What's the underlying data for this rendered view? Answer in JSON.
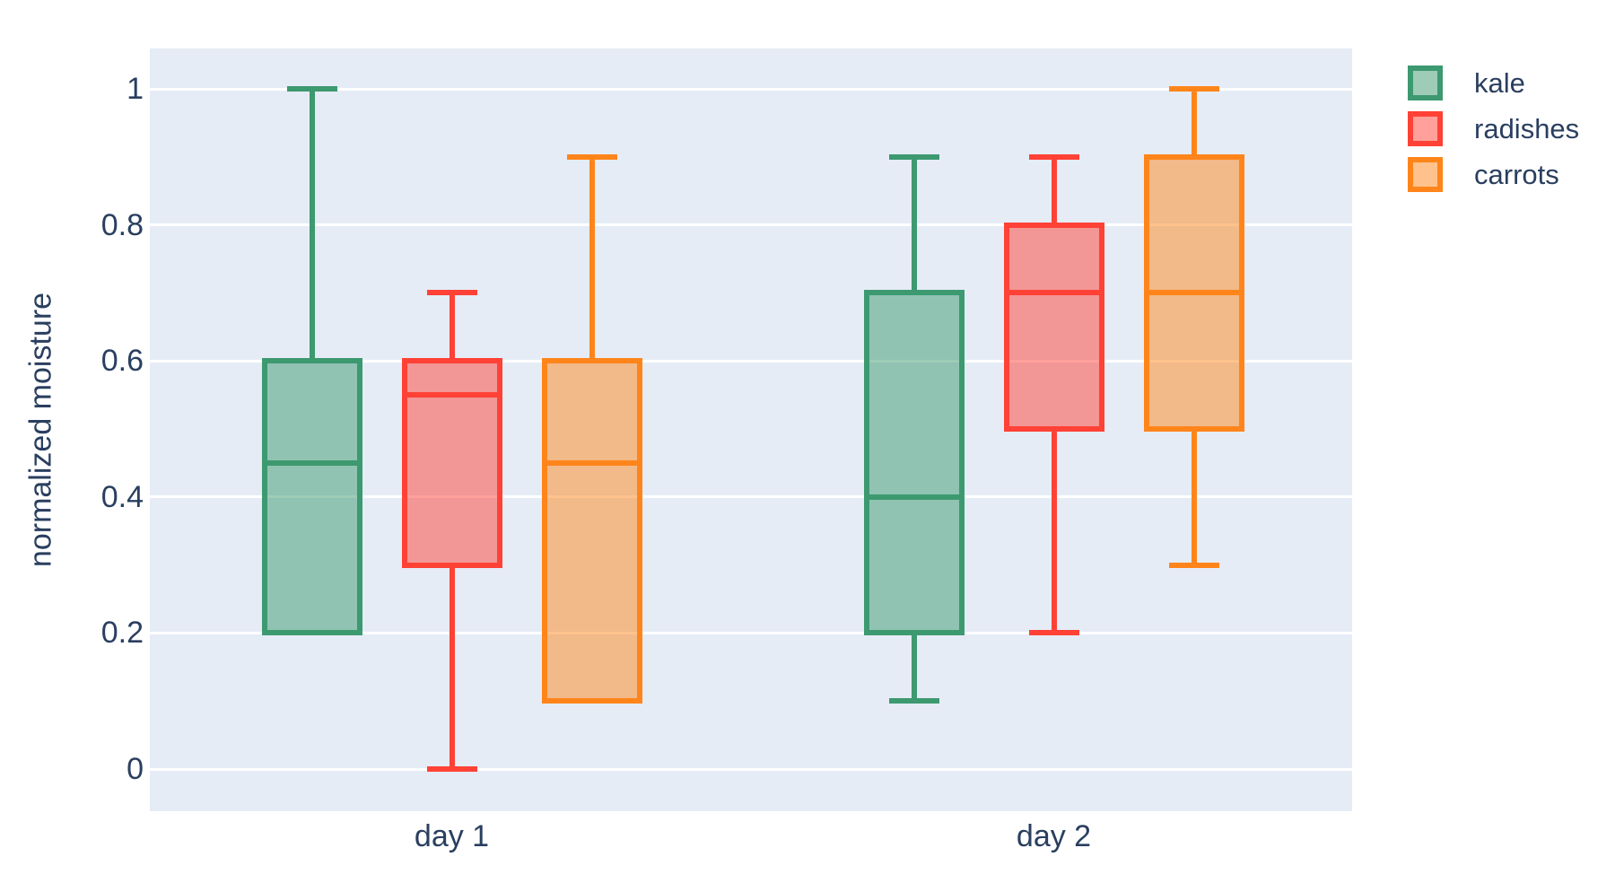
{
  "chart_data": {
    "type": "box",
    "boxmode": "group",
    "title": "",
    "xlabel": "",
    "ylabel": "normalized moisture",
    "categories": [
      "day 1",
      "day 2"
    ],
    "y_ticks": [
      {
        "label": "0",
        "value": 0
      },
      {
        "label": "0.2",
        "value": 0.2
      },
      {
        "label": "0.4",
        "value": 0.4
      },
      {
        "label": "0.6",
        "value": 0.6
      },
      {
        "label": "0.8",
        "value": 0.8
      },
      {
        "label": "1",
        "value": 1
      }
    ],
    "ylim": [
      -0.063,
      1.07
    ],
    "grid": true,
    "legend_position": "outside-top-right",
    "series": [
      {
        "name": "kale",
        "color": "#3D9970",
        "fill": "rgba(61,153,112,0.5)",
        "boxes": [
          {
            "category": "day 1",
            "min": 0.2,
            "q1": 0.2,
            "median": 0.45,
            "q3": 0.6,
            "max": 1.0
          },
          {
            "category": "day 2",
            "min": 0.1,
            "q1": 0.2,
            "median": 0.4,
            "q3": 0.7,
            "max": 0.9
          }
        ]
      },
      {
        "name": "radishes",
        "color": "#FF4136",
        "fill": "rgba(255,65,54,0.5)",
        "boxes": [
          {
            "category": "day 1",
            "min": 0.0,
            "q1": 0.3,
            "median": 0.55,
            "q3": 0.6,
            "max": 0.7
          },
          {
            "category": "day 2",
            "min": 0.2,
            "q1": 0.5,
            "median": 0.7,
            "q3": 0.8,
            "max": 0.9
          }
        ]
      },
      {
        "name": "carrots",
        "color": "#FF851B",
        "fill": "rgba(255,133,27,0.5)",
        "boxes": [
          {
            "category": "day 1",
            "min": 0.1,
            "q1": 0.1,
            "median": 0.45,
            "q3": 0.6,
            "max": 0.9
          },
          {
            "category": "day 2",
            "min": 0.3,
            "q1": 0.5,
            "median": 0.7,
            "q3": 0.9,
            "max": 1.0
          }
        ]
      }
    ]
  },
  "colors": {
    "paper_bg": "#FFFFFF",
    "plot_bg": "#E5ECF6",
    "grid": "#FFFFFF",
    "text": "#2A3F5F"
  }
}
